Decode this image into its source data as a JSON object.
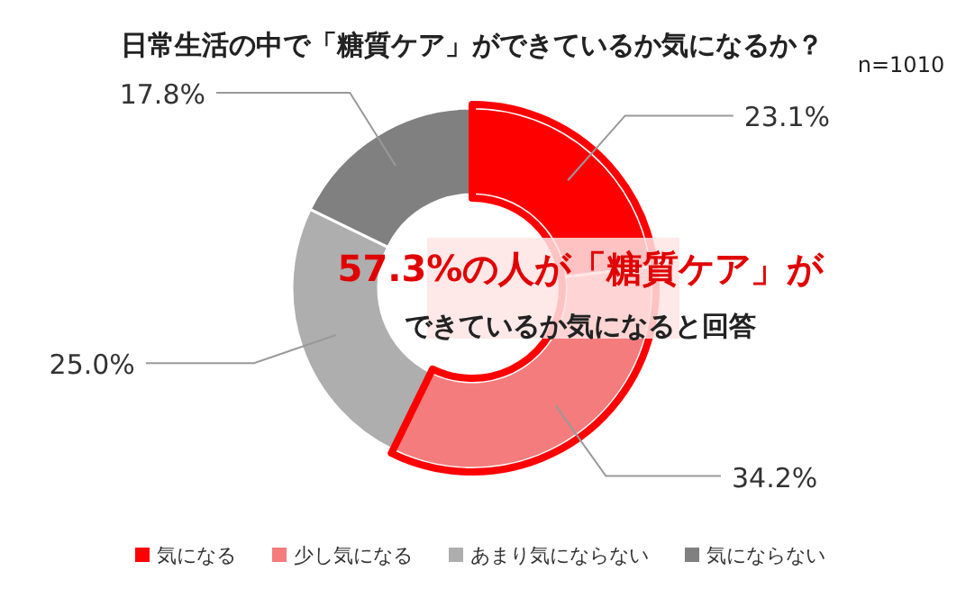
{
  "chart_data": {
    "type": "donut",
    "title": "日常生活の中で「糖質ケア」ができているか気になるか？",
    "subtitle": "n=1010",
    "categories": [
      "気になる",
      "少し気になる",
      "あまり気にならない",
      "気にならない"
    ],
    "values": [
      23.1,
      34.2,
      25.0,
      17.8
    ],
    "colors": [
      "#ff0000",
      "#f47c7c",
      "#aeaeae",
      "#808080"
    ],
    "value_labels": [
      "23.1%",
      "34.2%",
      "25.0%",
      "17.8%"
    ],
    "annotations": [
      "57.3%の人が「糖質ケア」が",
      "できているか気になると回答"
    ],
    "legend": "bottom"
  }
}
